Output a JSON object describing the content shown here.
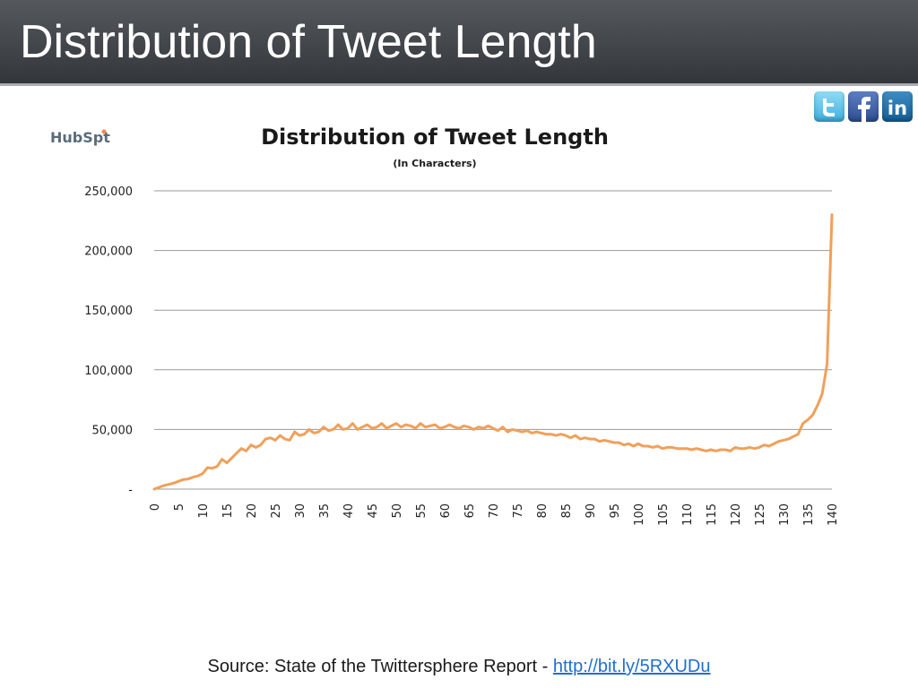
{
  "slide": {
    "title": "Distribution of Tweet Length",
    "source_text": "Source: State of the Twittersphere Report - ",
    "source_link": "http://bit.ly/5RXUDu"
  },
  "logo": {
    "text_a": "HubS",
    "text_b": "p",
    "text_c": "t",
    "color": "#5a6b7b",
    "accent": "#f0884b"
  },
  "social": [
    {
      "name": "twitter",
      "icon": "twitter-icon"
    },
    {
      "name": "facebook",
      "icon": "facebook-icon"
    },
    {
      "name": "linkedin",
      "icon": "linkedin-icon",
      "label": "in"
    }
  ],
  "chart_data": {
    "type": "line",
    "title": "Distribution of Tweet Length",
    "subtitle": "(In Characters)",
    "xlabel": "",
    "ylabel": "",
    "xlim": [
      0,
      140
    ],
    "ylim": [
      0,
      250000
    ],
    "y_ticks": [
      {
        "value": 0,
        "label": "-"
      },
      {
        "value": 50000,
        "label": "50,000"
      },
      {
        "value": 100000,
        "label": "100,000"
      },
      {
        "value": 150000,
        "label": "150,000"
      },
      {
        "value": 200000,
        "label": "200,000"
      },
      {
        "value": 250000,
        "label": "250,000"
      }
    ],
    "x_ticks": [
      0,
      5,
      10,
      15,
      20,
      25,
      30,
      35,
      40,
      45,
      50,
      55,
      60,
      65,
      70,
      75,
      80,
      85,
      90,
      95,
      100,
      105,
      110,
      115,
      120,
      125,
      130,
      135,
      140
    ],
    "grid": true,
    "line_color": "#f0a05a",
    "series": [
      {
        "x": [
          0,
          1,
          2,
          3,
          4,
          5,
          6,
          7,
          8,
          9,
          10,
          11,
          12,
          13,
          14,
          15,
          16,
          17,
          18,
          19,
          20,
          21,
          22,
          23,
          24,
          25,
          26,
          27,
          28,
          29,
          30,
          31,
          32,
          33,
          34,
          35,
          36,
          37,
          38,
          39,
          40,
          41,
          42,
          43,
          44,
          45,
          46,
          47,
          48,
          49,
          50,
          51,
          52,
          53,
          54,
          55,
          56,
          57,
          58,
          59,
          60,
          61,
          62,
          63,
          64,
          65,
          66,
          67,
          68,
          69,
          70,
          71,
          72,
          73,
          74,
          75,
          76,
          77,
          78,
          79,
          80,
          81,
          82,
          83,
          84,
          85,
          86,
          87,
          88,
          89,
          90,
          91,
          92,
          93,
          94,
          95,
          96,
          97,
          98,
          99,
          100,
          101,
          102,
          103,
          104,
          105,
          106,
          107,
          108,
          109,
          110,
          111,
          112,
          113,
          114,
          115,
          116,
          117,
          118,
          119,
          120,
          121,
          122,
          123,
          124,
          125,
          126,
          127,
          128,
          129,
          130,
          131,
          132,
          133,
          134,
          135,
          136,
          137,
          138,
          139,
          140
        ],
        "y": [
          0,
          1500,
          3000,
          4000,
          5000,
          6500,
          8000,
          8500,
          10000,
          11000,
          13000,
          18000,
          17500,
          19000,
          25000,
          22000,
          26000,
          30000,
          34000,
          32000,
          37000,
          35000,
          37000,
          42000,
          43000,
          41000,
          45000,
          42000,
          41000,
          48000,
          45000,
          46000,
          50000,
          47000,
          48000,
          52000,
          49000,
          50000,
          54000,
          50000,
          51000,
          55000,
          50000,
          52000,
          54000,
          51000,
          52000,
          55000,
          51000,
          53000,
          55000,
          52000,
          54000,
          53000,
          51000,
          55000,
          52000,
          53000,
          54000,
          51000,
          52000,
          54000,
          52000,
          51000,
          53000,
          52000,
          50000,
          52000,
          51000,
          53000,
          51000,
          49000,
          52000,
          48000,
          50000,
          49000,
          48000,
          49000,
          47000,
          48000,
          47000,
          46000,
          46000,
          45000,
          46000,
          45000,
          43000,
          45000,
          42000,
          43000,
          42000,
          42000,
          40000,
          41000,
          40000,
          39000,
          39000,
          37000,
          38000,
          36000,
          38000,
          36000,
          36000,
          35000,
          36000,
          34000,
          35000,
          35000,
          34000,
          34000,
          34000,
          33000,
          34000,
          33000,
          32000,
          33000,
          32000,
          33000,
          33000,
          32000,
          35000,
          34000,
          34000,
          35000,
          34000,
          35000,
          37000,
          36000,
          38000,
          40000,
          41000,
          42000,
          44000,
          46000,
          55000,
          58000,
          62000,
          70000,
          80000,
          105000,
          230000
        ]
      }
    ]
  }
}
